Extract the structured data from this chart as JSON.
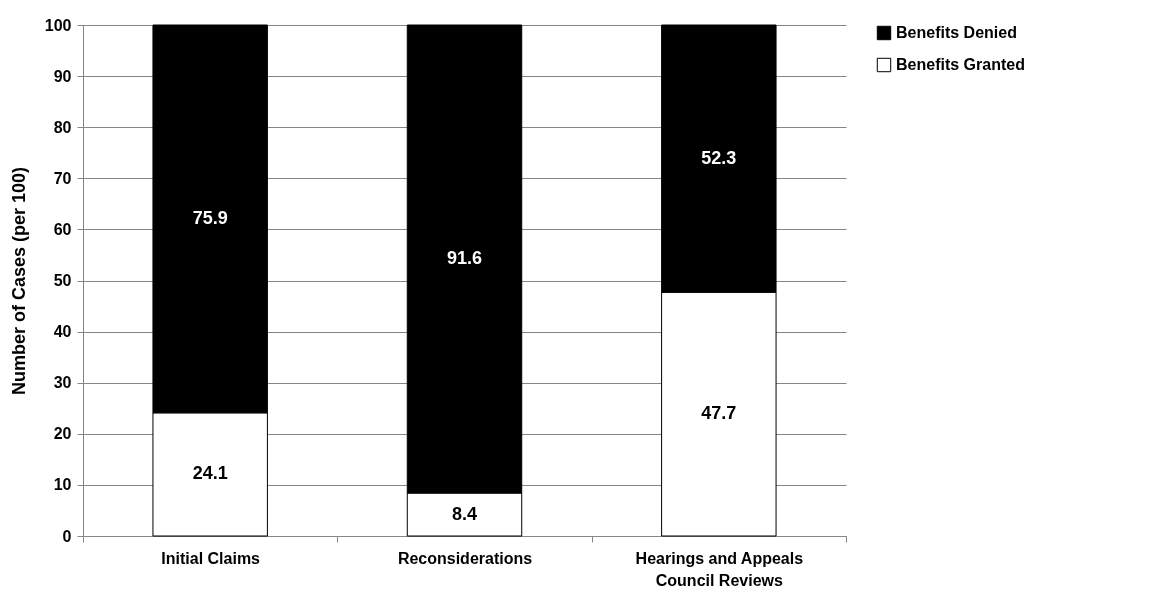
{
  "chart_data": {
    "type": "bar",
    "stacked": true,
    "ylabel": "Number of Cases (per 100)",
    "categories": [
      "Initial Claims",
      "Reconsiderations",
      "Hearings and Appeals Council Reviews"
    ],
    "series": [
      {
        "name": "Benefits Granted",
        "color": "#ffffff",
        "values": [
          24.1,
          8.4,
          47.7
        ]
      },
      {
        "name": "Benefits Denied",
        "color": "#000000",
        "values": [
          75.9,
          91.6,
          52.3
        ]
      }
    ],
    "ylim": [
      0,
      100
    ],
    "yticks": [
      0,
      10,
      20,
      30,
      40,
      50,
      60,
      70,
      80,
      90,
      100
    ],
    "grid": "y",
    "legend": "right",
    "data_labels": true
  }
}
